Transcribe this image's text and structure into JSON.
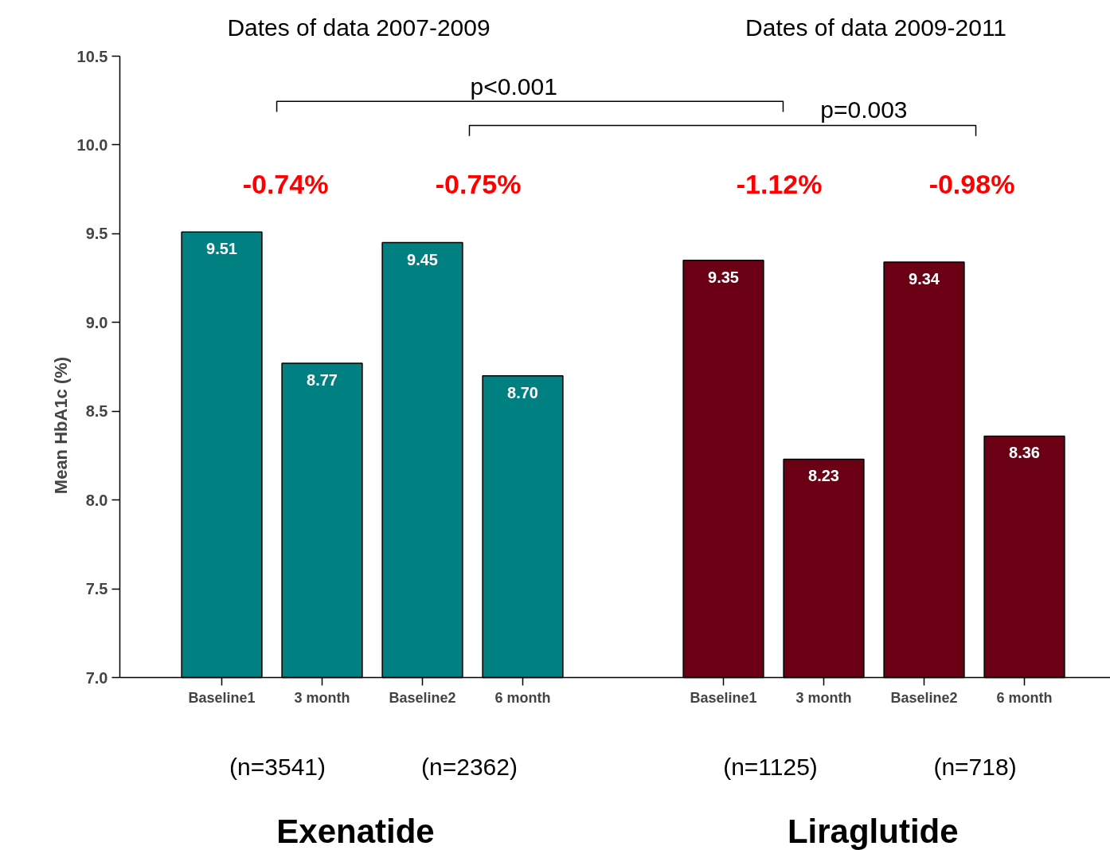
{
  "chart_data": {
    "type": "bar",
    "ylabel": "Mean HbA1c (%)",
    "categories": [
      "Baseline1",
      "3 month",
      "Baseline2",
      "6 month",
      null,
      "Baseline1",
      "3 month",
      "Baseline2",
      "6 month"
    ],
    "values": [
      9.51,
      8.77,
      9.45,
      8.7,
      null,
      9.35,
      8.23,
      9.34,
      8.36
    ],
    "value_labels": [
      "9.51",
      "8.77",
      "9.45",
      "8.70",
      null,
      "9.35",
      "8.23",
      "9.34",
      "8.36"
    ],
    "colors": [
      "#008080",
      "#008080",
      "#008080",
      "#008080",
      "#008080",
      "#6b0014",
      "#6b0014",
      "#6b0014",
      "#6b0014"
    ],
    "ylim": [
      7.0,
      10.5
    ],
    "yticks": [
      {
        "value": 7.0,
        "label": "7.0"
      },
      {
        "value": 7.5,
        "label": "7.5"
      },
      {
        "value": 8.0,
        "label": "8.0"
      },
      {
        "value": 8.5,
        "label": "8.5"
      },
      {
        "value": 9.0,
        "label": "9.0"
      },
      {
        "value": 9.5,
        "label": "9.5"
      },
      {
        "value": 10.0,
        "label": "10.0"
      },
      {
        "value": 10.5,
        "label": "10.5"
      }
    ],
    "grid": false,
    "annotations": [
      "Dates of data 2007-2009",
      "Dates of data 2009-2011",
      "p<0.001",
      "p=0.003",
      "-0.74%",
      "-0.75%",
      "-1.12%",
      "-0.98%",
      "(n=3541)",
      "(n=2362)",
      "(n=1125)",
      "(n=718)",
      "Exenatide",
      "Liraglutide"
    ]
  }
}
